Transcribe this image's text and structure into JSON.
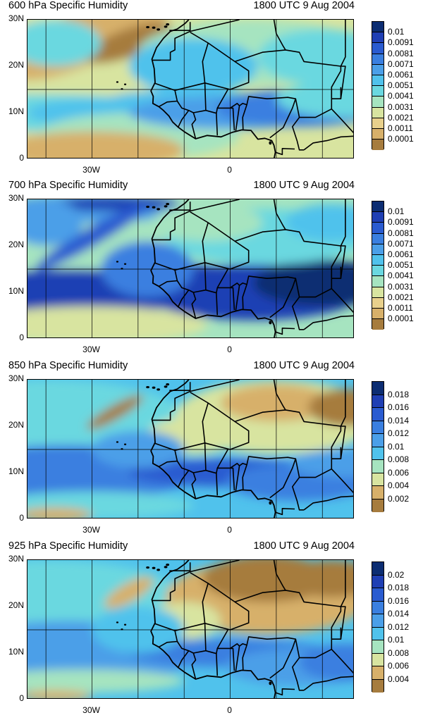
{
  "panels": [
    {
      "title": "600 hPa Specific Humidity",
      "time": "1800 UTC 9 Aug 2004",
      "y_ticks": [
        "30N",
        "20N",
        "10N",
        "0"
      ],
      "x_ticks": [
        "30W",
        "0"
      ],
      "colorbar_labels": [
        "0.01",
        "0.0091",
        "0.0081",
        "0.0071",
        "0.0061",
        "0.0051",
        "0.0041",
        "0.0031",
        "0.0021",
        "0.0011",
        "0.0001"
      ],
      "colorbar_colors": [
        "#0c2d72",
        "#1f3fb4",
        "#2a5bd0",
        "#3a7fe0",
        "#4b9fe8",
        "#50c2ec",
        "#6ad8e0",
        "#a6e4c0",
        "#d8e4a0",
        "#e8d08c",
        "#d7b06a",
        "#a67c3e"
      ]
    },
    {
      "title": "700 hPa Specific Humidity",
      "time": "1800 UTC 9 Aug 2004",
      "y_ticks": [
        "30N",
        "20N",
        "10N",
        "0"
      ],
      "x_ticks": [
        "30W",
        "0"
      ],
      "colorbar_labels": [
        "0.01",
        "0.0091",
        "0.0081",
        "0.0071",
        "0.0061",
        "0.0051",
        "0.0041",
        "0.0031",
        "0.0021",
        "0.0011",
        "0.0001"
      ],
      "colorbar_colors": [
        "#0c2d72",
        "#1f3fb4",
        "#2a5bd0",
        "#3a7fe0",
        "#4b9fe8",
        "#50c2ec",
        "#6ad8e0",
        "#a6e4c0",
        "#d8e4a0",
        "#e8d08c",
        "#d7b06a",
        "#a67c3e"
      ]
    },
    {
      "title": "850 hPa Specific Humidity",
      "time": "1800 UTC 9 Aug 2004",
      "y_ticks": [
        "30N",
        "20N",
        "10N",
        "0"
      ],
      "x_ticks": [
        "30W",
        "0"
      ],
      "colorbar_labels": [
        "0.018",
        "0.016",
        "0.014",
        "0.012",
        "0.01",
        "0.008",
        "0.006",
        "0.004",
        "0.002"
      ],
      "colorbar_colors": [
        "#0c2d72",
        "#1f3fb4",
        "#2a5bd0",
        "#3a7fe0",
        "#4b9fe8",
        "#50c2ec",
        "#a6e4c0",
        "#d8e4a0",
        "#d7b06a",
        "#a67c3e"
      ]
    },
    {
      "title": "925 hPa Specific Humidity",
      "time": "1800 UTC 9 Aug 2004",
      "y_ticks": [
        "30N",
        "20N",
        "10N",
        "0"
      ],
      "x_ticks": [
        "30W",
        "0"
      ],
      "colorbar_labels": [
        "0.02",
        "0.018",
        "0.016",
        "0.014",
        "0.012",
        "0.01",
        "0.008",
        "0.006",
        "0.004"
      ],
      "colorbar_colors": [
        "#0c2d72",
        "#1f3fb4",
        "#2a5bd0",
        "#3a7fe0",
        "#4b9fe8",
        "#50c2ec",
        "#a6e4c0",
        "#d8e4a0",
        "#d7b06a",
        "#a67c3e"
      ]
    }
  ],
  "map": {
    "extent_lon": [
      -40,
      40
    ],
    "extent_lat": [
      0,
      30
    ],
    "gridlines_lon": [
      -40,
      -30,
      -20,
      -10,
      0,
      10,
      20
    ],
    "gridline_lat": 15,
    "land_color_dry": "#a67c3e",
    "ocean_color_moist": "#50c2ec"
  }
}
